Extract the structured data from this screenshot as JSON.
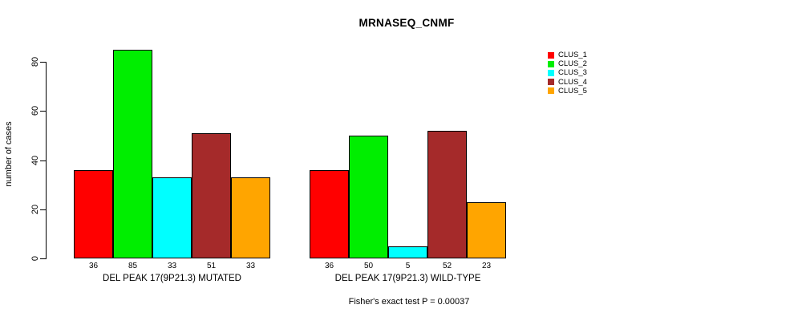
{
  "chart_data": {
    "type": "bar",
    "title": "MRNASEQ_CNMF",
    "ylabel": "number of cases",
    "ylim": [
      0,
      80
    ],
    "yticks": [
      0,
      20,
      40,
      60,
      80
    ],
    "grid": false,
    "legend_position": "right",
    "series": [
      {
        "name": "CLUS_1",
        "color": "#FF0000"
      },
      {
        "name": "CLUS_2",
        "color": "#00EE00"
      },
      {
        "name": "CLUS_3",
        "color": "#00FFFF"
      },
      {
        "name": "CLUS_4",
        "color": "#A52A2A"
      },
      {
        "name": "CLUS_5",
        "color": "#FFA500"
      }
    ],
    "groups": [
      {
        "label": "DEL PEAK 17(9P21.3) MUTATED",
        "values": [
          36,
          85,
          33,
          51,
          33
        ]
      },
      {
        "label": "DEL PEAK 17(9P21.3) WILD-TYPE",
        "values": [
          36,
          50,
          5,
          52,
          23
        ]
      }
    ],
    "annotation": "Fisher's exact test P = 0.00037"
  }
}
